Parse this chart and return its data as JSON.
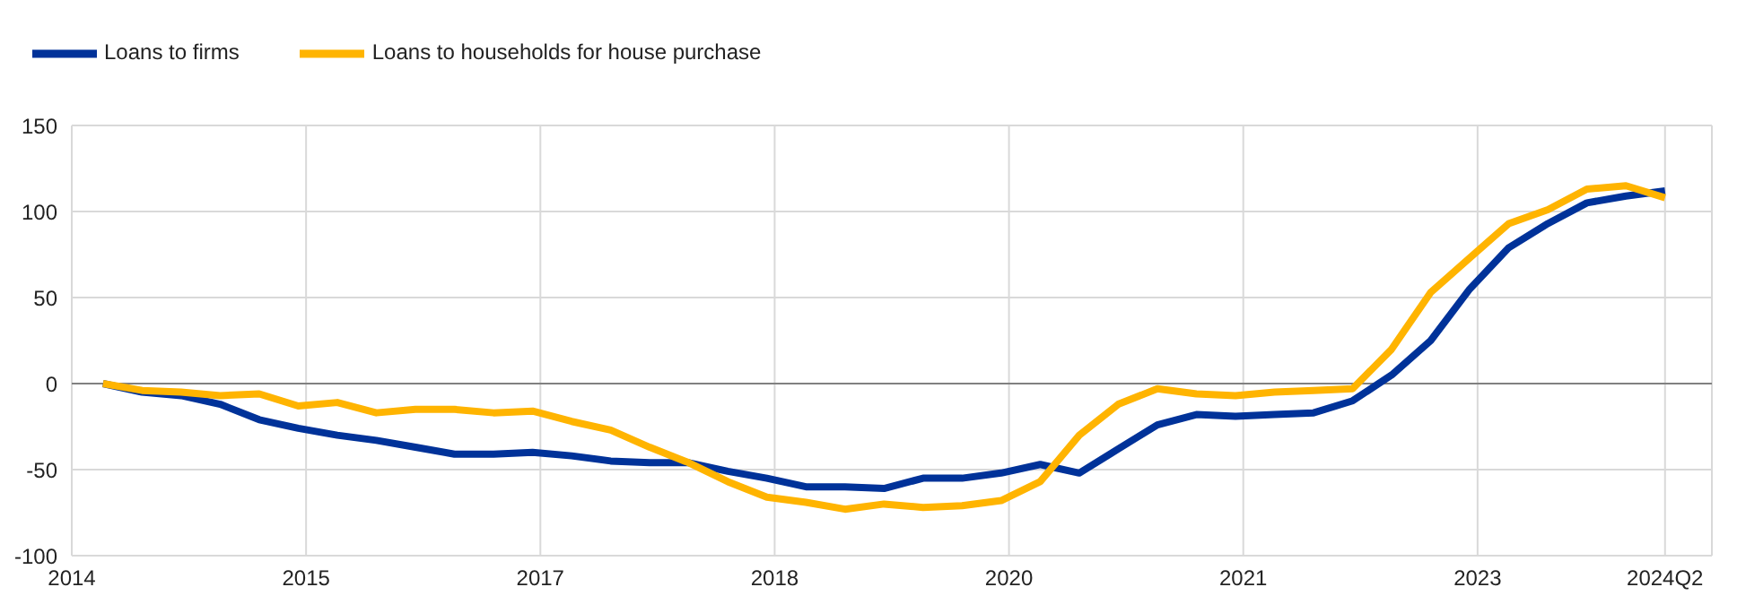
{
  "chart_data": {
    "type": "line",
    "x": [
      2014.2,
      2014.45,
      2014.7,
      2014.95,
      2015.2,
      2015.45,
      2015.7,
      2015.95,
      2016.2,
      2016.45,
      2016.7,
      2016.95,
      2017.2,
      2017.45,
      2017.7,
      2017.95,
      2018.2,
      2018.45,
      2018.7,
      2018.95,
      2019.2,
      2019.45,
      2019.7,
      2019.95,
      2020.2,
      2020.45,
      2020.7,
      2020.95,
      2021.2,
      2021.45,
      2021.7,
      2021.95,
      2022.2,
      2022.45,
      2022.7,
      2022.95,
      2023.2,
      2023.45,
      2023.7,
      2023.95,
      2024.2
    ],
    "series": [
      {
        "name": "Loans to firms",
        "color": "#003299",
        "values": [
          0,
          -5,
          -7,
          -12,
          -21,
          -26,
          -30,
          -33,
          -37,
          -41,
          -41,
          -40,
          -42,
          -45,
          -46,
          -46,
          -51,
          -55,
          -60,
          -60,
          -61,
          -55,
          -55,
          -52,
          -47,
          -52,
          -38,
          -24,
          -18,
          -19,
          -18,
          -17,
          -10,
          5,
          25,
          55,
          79,
          93,
          105,
          109,
          112
        ]
      },
      {
        "name": "Loans to households for house purchase",
        "color": "#ffb400",
        "values": [
          0,
          -4,
          -5,
          -7,
          -6,
          -13,
          -11,
          -17,
          -15,
          -15,
          -17,
          -16,
          -22,
          -27,
          -37,
          -46,
          -57,
          -66,
          -69,
          -73,
          -70,
          -72,
          -71,
          -68,
          -57,
          -30,
          -12,
          -3,
          -6,
          -7,
          -5,
          -4,
          -3,
          20,
          53,
          73,
          93,
          101,
          113,
          115,
          108
        ]
      }
    ],
    "xlim": [
      2014,
      2024.5
    ],
    "xticks": [
      2014,
      {
        "value": 2015.5,
        "label": "2015"
      },
      2017,
      {
        "value": 2018.5,
        "label": "2018"
      },
      2020,
      {
        "value": 2021.5,
        "label": "2021"
      },
      2023,
      {
        "value": 2024.2,
        "label": "2024Q2"
      }
    ],
    "ylim": [
      -100,
      150
    ],
    "yticks": [
      -100,
      -50,
      0,
      50,
      100,
      150
    ],
    "ref_lines": [
      {
        "axis": "y",
        "value": 0,
        "color": "#808080"
      }
    ],
    "grid": true,
    "legend": "top left",
    "marker": "none",
    "line_style": "solid"
  }
}
